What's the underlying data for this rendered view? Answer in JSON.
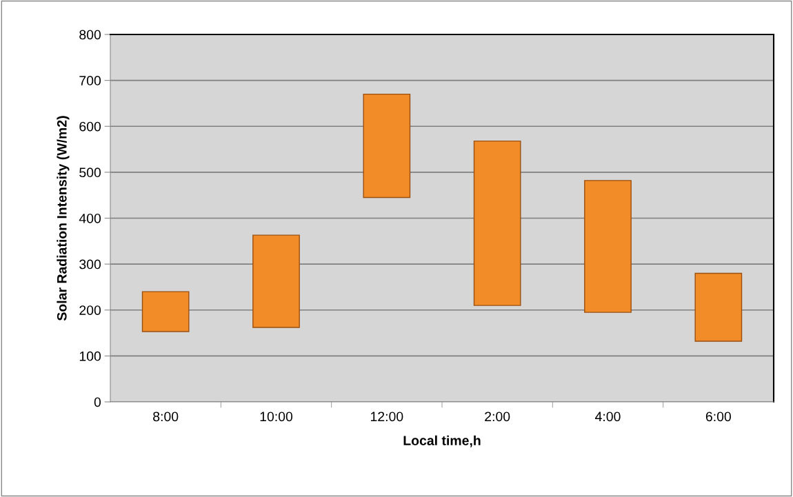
{
  "chart_data": {
    "type": "bar",
    "xlabel": "Local time,h",
    "ylabel": "Solar Radiation Intensity (W/m2)",
    "categories": [
      "8:00",
      "10:00",
      "12:00",
      "2:00",
      "4:00",
      "6:00"
    ],
    "base": [
      153,
      162,
      445,
      210,
      195,
      132
    ],
    "values": [
      87,
      201,
      225,
      358,
      287,
      148
    ],
    "color": "#f28c28",
    "ylim": [
      0,
      800
    ],
    "yticks": [
      0,
      100,
      200,
      300,
      400,
      500,
      600,
      700,
      800
    ],
    "grid": "y"
  }
}
